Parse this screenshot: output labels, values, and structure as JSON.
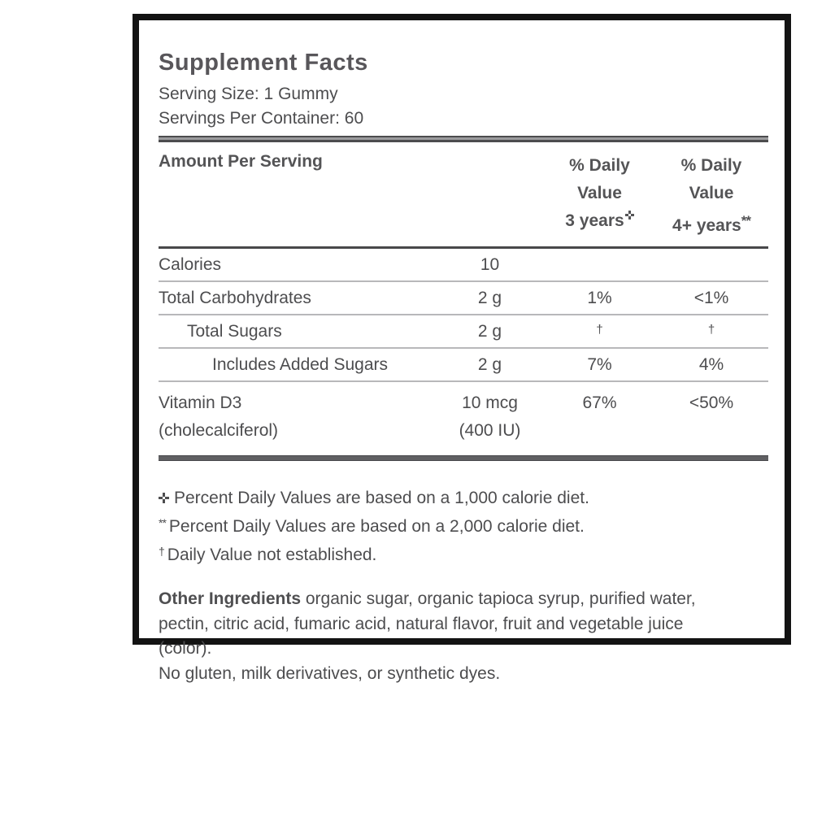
{
  "panel": {
    "title": "Supplement Facts",
    "serving_size": "Serving Size: 1 Gummy",
    "servings_per_container": "Servings Per Container: 60",
    "header": {
      "amount_per_serving": "Amount Per Serving",
      "dv3": {
        "line1": "% Daily",
        "line2": "Value",
        "line3": "3 years",
        "marker_icon": "open-cross"
      },
      "dv4": {
        "line1": "% Daily",
        "line2": "Value",
        "line3": "4+ years",
        "marker": "**"
      }
    },
    "rows": [
      {
        "name": "Calories",
        "amount": "10",
        "dv3": "",
        "dv4": ""
      },
      {
        "name": "Total Carbohydrates",
        "amount": "2 g",
        "dv3": "1%",
        "dv4": "<1%"
      },
      {
        "name": "Total Sugars",
        "amount": "2 g",
        "dv3": "†",
        "dv4": "†"
      },
      {
        "name": "Includes Added Sugars",
        "amount": "2 g",
        "dv3": "7%",
        "dv4": "4%"
      },
      {
        "name": "Vitamin D3",
        "name_sub": "(cholecalciferol)",
        "amount": "10 mcg",
        "amount_sub": "(400 IU)",
        "dv3": "67%",
        "dv4": "<50%"
      }
    ],
    "footnotes": {
      "f1_marker_icon": "open-cross",
      "f1_text": "Percent Daily Values are based on a 1,000 calorie diet.",
      "f2_marker": "**",
      "f2_text": "Percent Daily Values are based on a 2,000 calorie diet.",
      "f3_marker": "†",
      "f3_text": "Daily Value not established."
    },
    "other_ingredients": {
      "label": "Other Ingredients",
      "text": "organic sugar, organic tapioca syrup, purified water, pectin, citric acid, fumaric acid, natural flavor, fruit and vegetable juice (color)."
    },
    "free_of": "No gluten, milk derivatives, or synthetic dyes.",
    "colors": {
      "panel_border": "#131313",
      "text": "#4d4d4f",
      "rule_dark": "#48484a",
      "rule_light": "#b8b8ba"
    }
  }
}
